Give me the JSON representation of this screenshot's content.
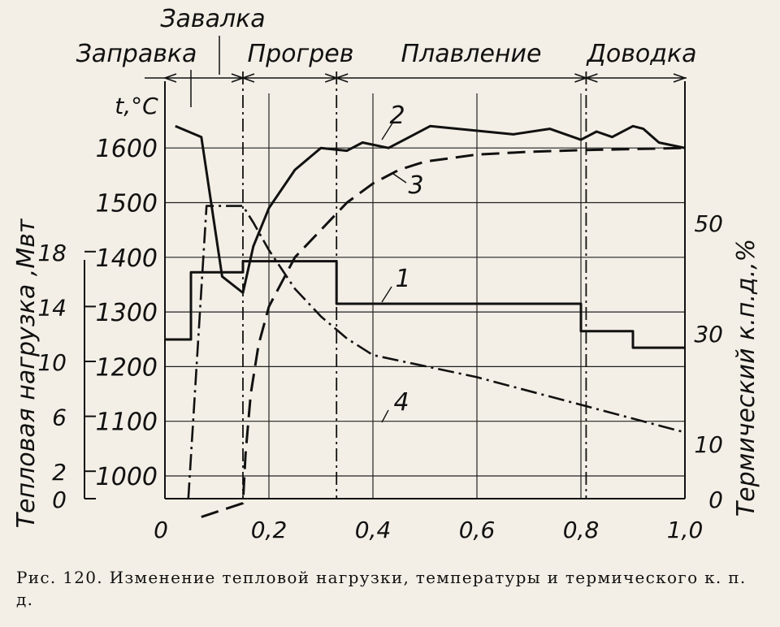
{
  "chart_data": {
    "type": "line",
    "x_ticks": [
      "0",
      "0,2",
      "0,4",
      "0,6",
      "0,8",
      "1,0"
    ],
    "xlim": [
      0,
      1.0
    ],
    "phases": [
      {
        "label": "Заправка",
        "from": 0.0,
        "to": 0.07
      },
      {
        "label": "Завалка",
        "from": 0.07,
        "to": 0.15
      },
      {
        "label": "Прогрев",
        "from": 0.15,
        "to": 0.33
      },
      {
        "label": "Плавление",
        "from": 0.33,
        "to": 0.81
      },
      {
        "label": "Доводка",
        "from": 0.81,
        "to": 1.0
      }
    ],
    "axes": {
      "temperature": {
        "label": "t,°C",
        "ticks": [
          "1600",
          "1500",
          "1400",
          "1300",
          "1200",
          "1100",
          "1000"
        ],
        "ylim": [
          925,
          1700
        ]
      },
      "heat_load": {
        "label": "Тепловая нагрузка ,Мвт",
        "ticks": [
          "18",
          "14",
          "10",
          "6",
          "2",
          "0"
        ],
        "ylim": [
          0,
          18
        ]
      },
      "efficiency": {
        "label": "Термический к.п.д.,%",
        "ticks": [
          "50",
          "30",
          "10",
          "0"
        ],
        "ylim": [
          0,
          65
        ]
      }
    },
    "series": [
      {
        "name": "1",
        "axis": "heat_load",
        "style": "solid",
        "points": [
          [
            0,
            11.6
          ],
          [
            0.05,
            11.6
          ],
          [
            0.05,
            16.5
          ],
          [
            0.15,
            16.5
          ],
          [
            0.15,
            17.3
          ],
          [
            0.33,
            17.3
          ],
          [
            0.33,
            14.2
          ],
          [
            0.8,
            14.2
          ],
          [
            0.8,
            12.2
          ],
          [
            0.9,
            12.2
          ],
          [
            0.9,
            11.0
          ],
          [
            1.0,
            11.0
          ]
        ]
      },
      {
        "name": "2",
        "axis": "temperature",
        "style": "solid",
        "points": [
          [
            0.02,
            1640
          ],
          [
            0.07,
            1620
          ],
          [
            0.11,
            1365
          ],
          [
            0.15,
            1335
          ],
          [
            0.17,
            1420
          ],
          [
            0.2,
            1490
          ],
          [
            0.25,
            1560
          ],
          [
            0.3,
            1600
          ],
          [
            0.35,
            1595
          ],
          [
            0.38,
            1610
          ],
          [
            0.43,
            1600
          ],
          [
            0.51,
            1640
          ],
          [
            0.67,
            1625
          ],
          [
            0.74,
            1635
          ],
          [
            0.8,
            1615
          ],
          [
            0.83,
            1630
          ],
          [
            0.86,
            1620
          ],
          [
            0.9,
            1640
          ],
          [
            0.92,
            1635
          ],
          [
            0.95,
            1610
          ],
          [
            1.0,
            1600
          ]
        ]
      },
      {
        "name": "3",
        "axis": "temperature",
        "style": "dashed",
        "points": [
          [
            0.07,
            925
          ],
          [
            0.15,
            950
          ],
          [
            0.155,
            1040
          ],
          [
            0.165,
            1150
          ],
          [
            0.18,
            1240
          ],
          [
            0.2,
            1310
          ],
          [
            0.25,
            1400
          ],
          [
            0.3,
            1450
          ],
          [
            0.35,
            1500
          ],
          [
            0.4,
            1535
          ],
          [
            0.45,
            1560
          ],
          [
            0.5,
            1575
          ],
          [
            0.6,
            1588
          ],
          [
            0.7,
            1593
          ],
          [
            0.8,
            1596
          ],
          [
            0.9,
            1598
          ],
          [
            1.0,
            1600
          ]
        ]
      },
      {
        "name": "4",
        "axis": "efficiency",
        "style": "dashdot",
        "points": [
          [
            0.045,
            0
          ],
          [
            0.08,
            53
          ],
          [
            0.15,
            53
          ],
          [
            0.17,
            50
          ],
          [
            0.2,
            45
          ],
          [
            0.25,
            38
          ],
          [
            0.3,
            33
          ],
          [
            0.35,
            29
          ],
          [
            0.4,
            26
          ],
          [
            0.45,
            25
          ],
          [
            0.6,
            22
          ],
          [
            0.8,
            17
          ],
          [
            1.0,
            12
          ]
        ]
      }
    ]
  },
  "caption": "Рис. 120. Изменение тепловой нагрузки, температуры и термического к. п. д."
}
